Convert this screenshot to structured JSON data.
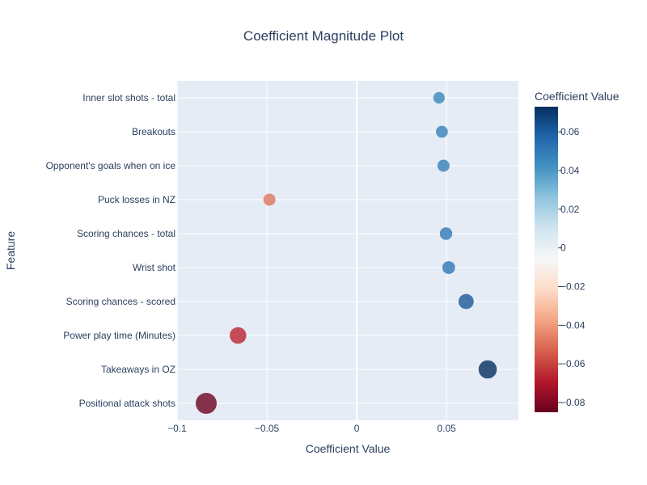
{
  "chart_data": {
    "type": "scatter",
    "title": "Coefficient Magnitude Plot",
    "xlabel": "Coefficient Value",
    "ylabel": "Feature",
    "xlim": [
      -0.1,
      0.09
    ],
    "x_ticks": [
      -0.1,
      -0.05,
      0,
      0.05
    ],
    "x_tick_labels": [
      "−0.1",
      "−0.05",
      "0",
      "0.05"
    ],
    "grid": true,
    "categories": [
      "Inner slot shots - total",
      "Breakouts",
      "Opponent's goals when on ice",
      "Puck losses in NZ",
      "Scoring chances - total",
      "Wrist shot",
      "Scoring chances - scored",
      "Power play time (Minutes)",
      "Takeaways in OZ",
      "Positional attack shots"
    ],
    "values": [
      0.0458,
      0.0474,
      0.0483,
      -0.0486,
      0.0497,
      0.0512,
      0.0609,
      -0.0661,
      0.0729,
      -0.0838
    ],
    "colorbar": {
      "title": "Coefficient Value",
      "range": [
        -0.085,
        0.073
      ],
      "ticks": [
        0.06,
        0.04,
        0.02,
        0,
        -0.02,
        -0.04,
        -0.06,
        -0.08
      ],
      "tick_labels": [
        "0.06",
        "0.04",
        "0.02",
        "0",
        "−0.02",
        "−0.04",
        "−0.06",
        "−0.08"
      ],
      "colorscale": "RdBu",
      "colors": [
        "#67001f",
        "#b2182b",
        "#d6604d",
        "#f4a582",
        "#fddbc7",
        "#f7f7f7",
        "#d1e5f0",
        "#92c5de",
        "#4393c3",
        "#2166ac",
        "#053061"
      ]
    },
    "plot_bg": "#e5ecf6",
    "grid_color": "#ffffff"
  }
}
